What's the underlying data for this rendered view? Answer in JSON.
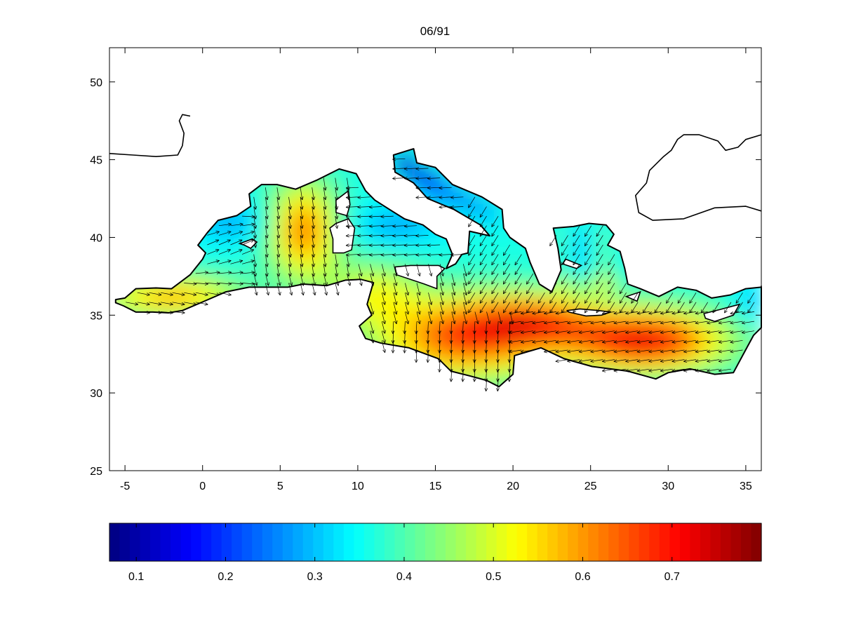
{
  "map": {
    "title": "06/91",
    "x_range": [
      -6,
      36
    ],
    "y_range": [
      25,
      52.2
    ],
    "x_ticks": [
      -5,
      0,
      5,
      10,
      15,
      20,
      25,
      30,
      35
    ],
    "y_ticks": [
      25,
      30,
      35,
      40,
      45,
      50
    ]
  },
  "colorbar": {
    "range": [
      0.07,
      0.8
    ],
    "ticks": [
      0.1,
      0.2,
      0.3,
      0.4,
      0.5,
      0.6,
      0.7
    ],
    "colormap": "jet"
  },
  "colors": {
    "coastline": "#000000",
    "arrow": "#000000",
    "land": "#ffffff"
  }
}
